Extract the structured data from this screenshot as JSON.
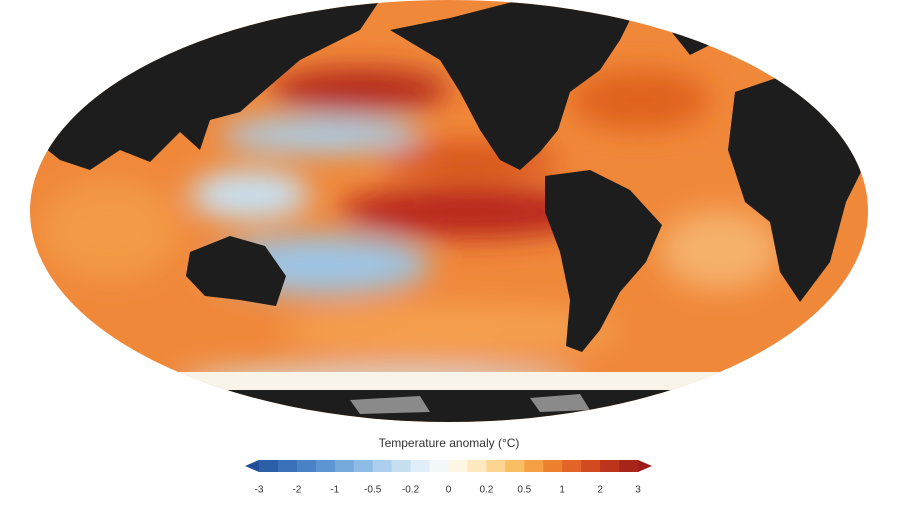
{
  "colorbar": {
    "title": "Temperature anomaly (°C)",
    "ticks": [
      -3,
      -2,
      -1,
      -0.5,
      -0.2,
      0,
      0.2,
      0.5,
      1,
      2,
      3
    ],
    "under_color": "#1f4e96",
    "over_color": "#9e1b1b",
    "colors": [
      "#2c5fa8",
      "#3a70b8",
      "#4a82c6",
      "#5d95d2",
      "#75a9dc",
      "#8fbce4",
      "#abcfec",
      "#c6e0f2",
      "#dfeef8",
      "#f3f8fb",
      "#fdf6e3",
      "#fde9c0",
      "#fcd592",
      "#f9bd64",
      "#f5a042",
      "#ee8130",
      "#e26426",
      "#d24b20",
      "#bd341c",
      "#a82519"
    ]
  }
}
